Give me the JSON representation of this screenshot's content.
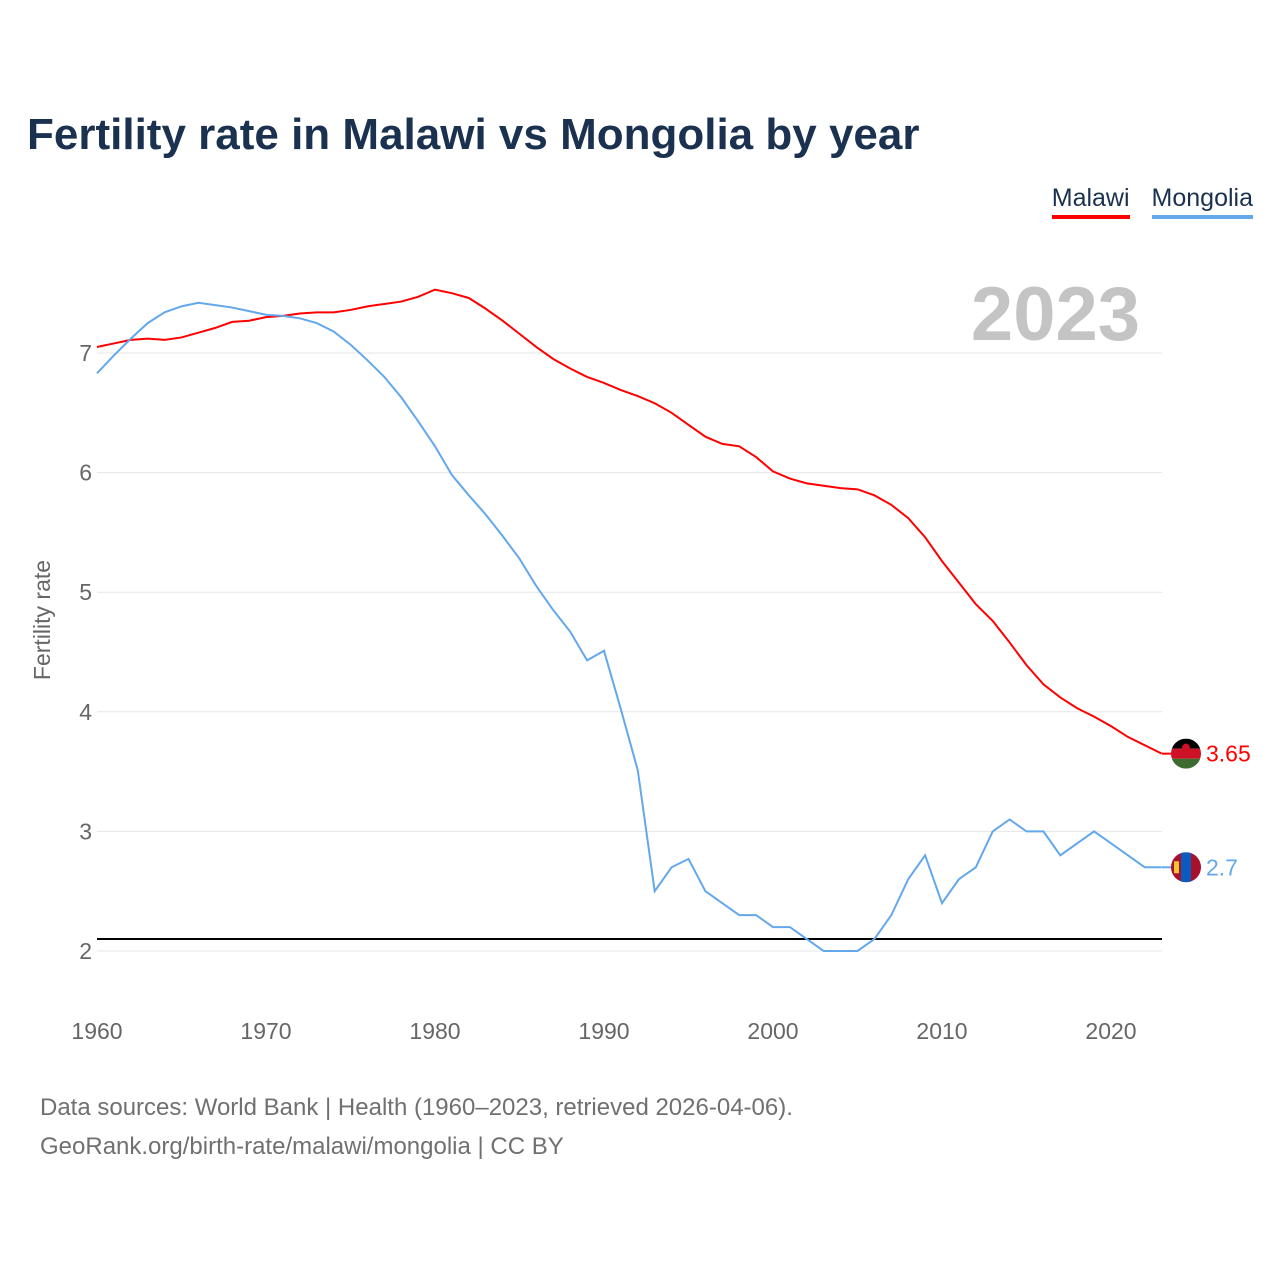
{
  "title": "Fertility rate in Malawi vs Mongolia by year",
  "year_label": "2023",
  "source_line1": "Data sources: World Bank | Health (1960–2023, retrieved 2026-04-06).",
  "source_line2": "GeoRank.org/birth-rate/malawi/mongolia | CC BY",
  "chart_data": {
    "type": "line",
    "title": "Fertility rate in Malawi vs Mongolia by year",
    "xlabel": "",
    "ylabel": "Fertility rate",
    "xlim": [
      1960,
      2023
    ],
    "ylim": [
      2,
      7.5
    ],
    "x_ticks": [
      "1960",
      "1970",
      "1980",
      "1990",
      "2000",
      "2010",
      "2020"
    ],
    "y_ticks": [
      "2",
      "3",
      "4",
      "5",
      "6",
      "7"
    ],
    "grid": true,
    "legend_position": "top-right",
    "reference_line": 2.1,
    "x_start": 1960,
    "series": [
      {
        "name": "Malawi",
        "color": "#ff0000",
        "end_label": "3.65",
        "values": [
          7.05,
          7.08,
          7.11,
          7.12,
          7.11,
          7.13,
          7.17,
          7.21,
          7.26,
          7.27,
          7.3,
          7.31,
          7.33,
          7.34,
          7.34,
          7.36,
          7.39,
          7.41,
          7.43,
          7.47,
          7.53,
          7.5,
          7.46,
          7.37,
          7.27,
          7.16,
          7.05,
          6.95,
          6.87,
          6.8,
          6.75,
          6.69,
          6.64,
          6.58,
          6.5,
          6.4,
          6.3,
          6.24,
          6.22,
          6.13,
          6.01,
          5.95,
          5.91,
          5.89,
          5.87,
          5.86,
          5.81,
          5.73,
          5.62,
          5.46,
          5.26,
          5.08,
          4.9,
          4.76,
          4.58,
          4.39,
          4.23,
          4.12,
          4.03,
          3.96,
          3.88,
          3.79,
          3.72,
          3.65
        ]
      },
      {
        "name": "Mongolia",
        "color": "#63a8ec",
        "end_label": "2.7",
        "values": [
          6.83,
          6.98,
          7.12,
          7.25,
          7.34,
          7.39,
          7.42,
          7.4,
          7.38,
          7.35,
          7.32,
          7.31,
          7.29,
          7.25,
          7.18,
          7.07,
          6.94,
          6.8,
          6.63,
          6.43,
          6.22,
          5.98,
          5.81,
          5.65,
          5.47,
          5.28,
          5.05,
          4.85,
          4.67,
          4.43,
          4.51,
          4.02,
          3.51,
          2.5,
          2.7,
          2.77,
          2.5,
          2.4,
          2.3,
          2.3,
          2.2,
          2.2,
          2.1,
          2.0,
          2.0,
          2.0,
          2.1,
          2.3,
          2.6,
          2.8,
          2.4,
          2.6,
          2.7,
          3.0,
          3.1,
          3.0,
          3.0,
          2.8,
          2.9,
          3.0,
          2.9,
          2.8,
          2.7,
          2.7
        ]
      }
    ]
  }
}
